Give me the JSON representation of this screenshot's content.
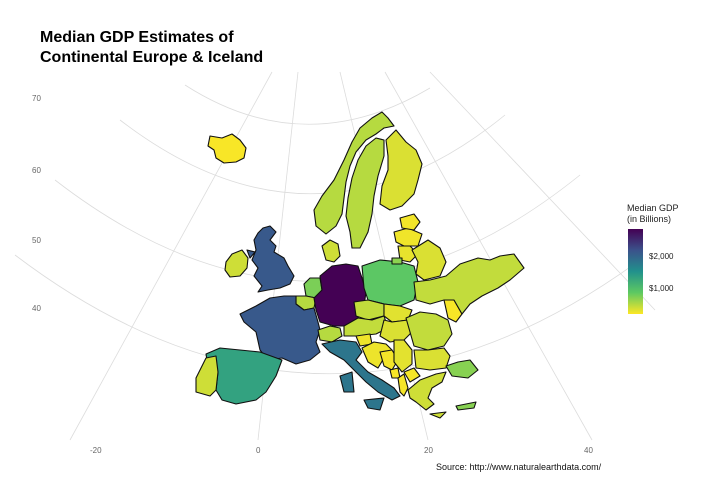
{
  "title_line1": "Median GDP Estimates of",
  "title_line2": "Continental Europe & Iceland",
  "caption": "Source: http://www.naturalearthdata.com/",
  "axis": {
    "lat_labels": [
      "70",
      "60",
      "50",
      "40"
    ],
    "lon_labels": [
      "-20",
      "0",
      "20",
      "40"
    ]
  },
  "legend": {
    "title_line1": "Median GDP",
    "title_line2": "(in Billions)",
    "labels": [
      "$2,000",
      "$1,000"
    ],
    "colors": [
      "#440154",
      "#3b528b",
      "#21918c",
      "#5ec962",
      "#fde725"
    ]
  },
  "chart_data": {
    "type": "choropleth",
    "variable": "Median GDP (in Billions)",
    "scale": "viridis",
    "countries": [
      {
        "name": "Germany",
        "gdp": 2700
      },
      {
        "name": "France",
        "gdp": 1950
      },
      {
        "name": "United Kingdom",
        "gdp": 1950
      },
      {
        "name": "Italy",
        "gdp": 1650
      },
      {
        "name": "Spain",
        "gdp": 1150
      },
      {
        "name": "Poland",
        "gdp": 700
      },
      {
        "name": "Netherlands",
        "gdp": 550
      },
      {
        "name": "Turkey",
        "gdp": 500
      },
      {
        "name": "Russia",
        "gdp": 480
      },
      {
        "name": "Norway",
        "gdp": 300
      },
      {
        "name": "Sweden",
        "gdp": 300
      },
      {
        "name": "Belgium",
        "gdp": 300
      },
      {
        "name": "Switzerland",
        "gdp": 300
      },
      {
        "name": "Austria",
        "gdp": 250
      },
      {
        "name": "Czechia",
        "gdp": 250
      },
      {
        "name": "Ukraine",
        "gdp": 250
      },
      {
        "name": "Romania",
        "gdp": 250
      },
      {
        "name": "Portugal",
        "gdp": 200
      },
      {
        "name": "Greece",
        "gdp": 200
      },
      {
        "name": "Ireland",
        "gdp": 200
      },
      {
        "name": "Denmark",
        "gdp": 200
      },
      {
        "name": "Belarus",
        "gdp": 150
      },
      {
        "name": "Finland",
        "gdp": 150
      },
      {
        "name": "Hungary",
        "gdp": 150
      },
      {
        "name": "Iceland",
        "gdp": 20
      }
    ]
  }
}
